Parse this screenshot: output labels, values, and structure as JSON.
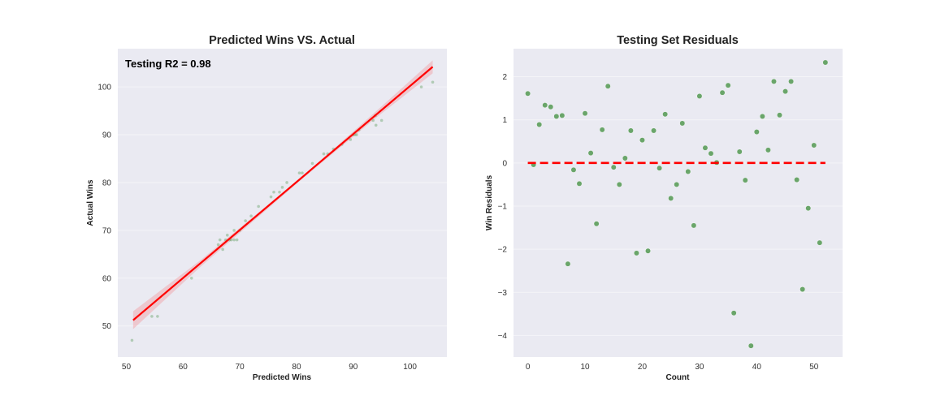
{
  "chart_data": [
    {
      "type": "scatter",
      "title": "Predicted Wins VS. Actual",
      "xlabel": "Predicted Wins",
      "ylabel": "Actual Wins",
      "annotation": "Testing R2 = 0.98",
      "xlim": [
        48.5,
        106.5
      ],
      "ylim": [
        43.5,
        108
      ],
      "xticks": [
        50,
        60,
        70,
        80,
        90,
        100
      ],
      "yticks": [
        50,
        60,
        70,
        80,
        90,
        100
      ],
      "grid": true,
      "background": "#eaeaf2",
      "point_color": "#6aa56a",
      "line_color": "#ff0000",
      "points": [
        [
          51,
          47
        ],
        [
          54.5,
          52
        ],
        [
          55.5,
          52
        ],
        [
          61.5,
          60
        ],
        [
          66.2,
          67
        ],
        [
          66.5,
          68
        ],
        [
          67,
          66
        ],
        [
          67.5,
          68
        ],
        [
          67.8,
          69
        ],
        [
          68.2,
          68
        ],
        [
          68.5,
          68
        ],
        [
          69,
          70
        ],
        [
          69,
          68
        ],
        [
          69.5,
          68
        ],
        [
          70,
          70
        ],
        [
          71,
          72
        ],
        [
          72,
          73
        ],
        [
          73.3,
          75
        ],
        [
          75.5,
          77
        ],
        [
          76,
          78
        ],
        [
          77,
          78
        ],
        [
          77.5,
          79
        ],
        [
          78.3,
          80
        ],
        [
          80.5,
          82
        ],
        [
          81,
          82
        ],
        [
          82.8,
          84
        ],
        [
          84.8,
          86
        ],
        [
          85.5,
          86
        ],
        [
          86.5,
          87
        ],
        [
          88,
          88
        ],
        [
          89.5,
          89
        ],
        [
          90,
          90
        ],
        [
          90.3,
          90
        ],
        [
          90.6,
          90
        ],
        [
          91,
          91
        ],
        [
          93.5,
          93
        ],
        [
          93.9,
          94
        ],
        [
          94,
          92
        ],
        [
          95,
          93
        ],
        [
          102,
          100
        ],
        [
          104,
          101
        ]
      ],
      "regression": {
        "x": [
          51.2,
          104
        ],
        "y": [
          51.2,
          104.2
        ]
      }
    },
    {
      "type": "scatter",
      "title": "Testing Set Residuals",
      "xlabel": "Count",
      "ylabel": "Win Residuals",
      "xlim": [
        -2.5,
        55
      ],
      "ylim": [
        -4.5,
        2.65
      ],
      "xticks": [
        0,
        10,
        20,
        30,
        40,
        50
      ],
      "yticks": [
        2,
        1,
        0,
        -1,
        -2,
        -3,
        -4
      ],
      "grid": true,
      "point_color": "#6aa56a",
      "zero_line_color": "#ff0000",
      "x": [
        0,
        1,
        2,
        3,
        4,
        5,
        6,
        7,
        8,
        9,
        10,
        11,
        12,
        13,
        14,
        15,
        16,
        17,
        18,
        19,
        20,
        21,
        22,
        23,
        24,
        25,
        26,
        27,
        28,
        29,
        30,
        31,
        32,
        33,
        34,
        35,
        36,
        37,
        38,
        39,
        40,
        41,
        42,
        43,
        44,
        45,
        46,
        47,
        48,
        49,
        50,
        51,
        52
      ],
      "y": [
        1.61,
        -0.04,
        0.89,
        1.34,
        1.3,
        1.08,
        1.1,
        -2.34,
        -0.16,
        -0.48,
        1.15,
        0.23,
        -1.41,
        0.77,
        1.78,
        -0.1,
        -0.5,
        0.11,
        0.75,
        -2.09,
        0.53,
        -2.04,
        0.75,
        -0.12,
        1.13,
        -0.82,
        -0.5,
        0.92,
        -0.2,
        -1.45,
        1.55,
        0.35,
        0.22,
        0.01,
        1.63,
        1.8,
        -3.48,
        0.26,
        -0.4,
        -4.24,
        0.72,
        1.08,
        0.3,
        1.89,
        1.11,
        1.66,
        1.89,
        -0.39,
        -2.93,
        -1.05,
        0.41,
        -1.85,
        2.33
      ]
    }
  ]
}
